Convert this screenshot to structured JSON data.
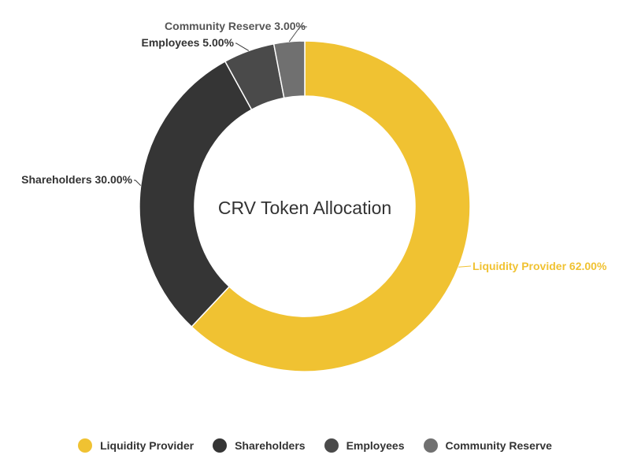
{
  "chart_data": {
    "type": "pie",
    "variant": "donut",
    "title": "CRV Token Allocation",
    "slices": [
      {
        "name": "Liquidity Provider",
        "value": 62.0,
        "label": "Liquidity Provider 62.00%",
        "color": "#F0C232",
        "label_color": "#F0C232"
      },
      {
        "name": "Shareholders",
        "value": 30.0,
        "label": "Shareholders 30.00%",
        "color": "#353535",
        "label_color": "#333333"
      },
      {
        "name": "Employees",
        "value": 5.0,
        "label": "Employees 5.00%",
        "color": "#4A4A4A",
        "label_color": "#333333"
      },
      {
        "name": "Community Reserve",
        "value": 3.0,
        "label": "Community Reserve 3.00%",
        "color": "#707070",
        "label_color": "#555555"
      }
    ],
    "legend_position": "bottom",
    "start_angle": "top, clockwise"
  }
}
